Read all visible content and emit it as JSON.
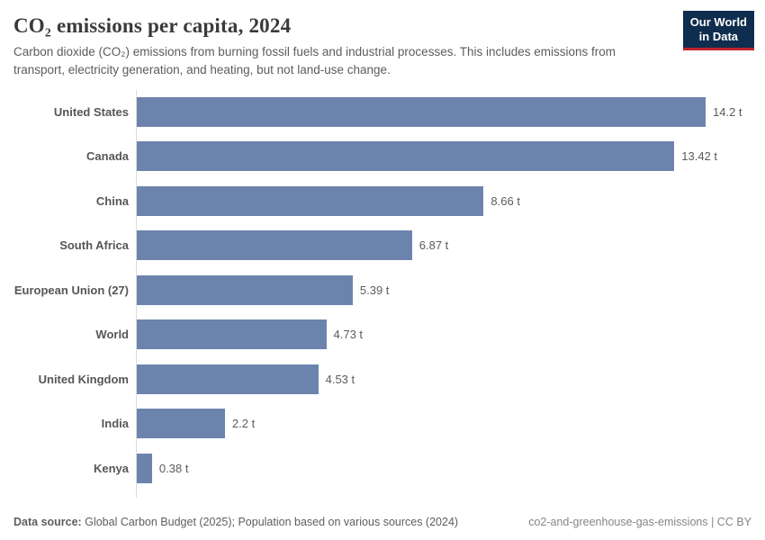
{
  "header": {
    "title": "CO₂ emissions per capita, 2024",
    "subtitle": "Carbon dioxide (CO₂) emissions from burning fossil fuels and industrial processes. This includes emissions from transport, electricity generation, and heating, but not land-use change.",
    "logo": {
      "line1": "Our World",
      "line2": "in Data",
      "bg_color": "#0f2d4e",
      "accent_color": "#c0242c"
    }
  },
  "chart_data": {
    "type": "bar",
    "orientation": "horizontal",
    "title": "CO₂ emissions per capita, 2024",
    "unit": "t",
    "xlim": [
      0,
      14.2
    ],
    "grid": false,
    "bar_color": "#6c84ad",
    "axis_line_color": "#dcdcdc",
    "categories": [
      "United States",
      "Canada",
      "China",
      "South Africa",
      "European Union (27)",
      "World",
      "United Kingdom",
      "India",
      "Kenya"
    ],
    "values": [
      14.2,
      13.42,
      8.66,
      6.87,
      5.39,
      4.73,
      4.53,
      2.2,
      0.38
    ],
    "value_labels": [
      "14.2 t",
      "13.42 t",
      "8.66 t",
      "6.87 t",
      "5.39 t",
      "4.73 t",
      "4.53 t",
      "2.2 t",
      "0.38 t"
    ]
  },
  "footer": {
    "source_label": "Data source:",
    "source_text": "Global Carbon Budget (2025); Population based on various sources (2024)",
    "note_right": "co2-and-greenhouse-gas-emissions | CC BY"
  }
}
